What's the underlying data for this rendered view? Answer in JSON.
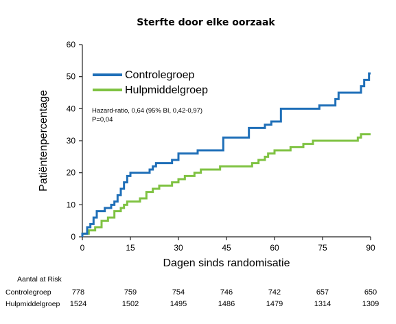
{
  "chart_data": {
    "type": "line",
    "step": true,
    "title": "Sterfte door elke oorzaak",
    "xlabel": "Dagen sinds randomisatie",
    "ylabel": "Patiëntenpercentage",
    "xlim": [
      0,
      90
    ],
    "ylim": [
      0,
      60
    ],
    "xticks": [
      0,
      15,
      30,
      45,
      60,
      75,
      90
    ],
    "yticks": [
      0,
      10,
      20,
      30,
      40,
      50,
      60
    ],
    "grid": false,
    "legend_position": "top-left",
    "annotation": {
      "line1": "Hazard-ratio, 0,64 (95% BI, 0,42-0,97)",
      "line2": "P=0,04"
    },
    "series": [
      {
        "name": "Controlegroep",
        "color": "#1f6fb8",
        "points": [
          [
            0,
            0
          ],
          [
            0,
            1
          ],
          [
            1.5,
            1
          ],
          [
            1.5,
            3
          ],
          [
            2.5,
            3
          ],
          [
            2.5,
            4
          ],
          [
            3.5,
            4
          ],
          [
            3.5,
            6
          ],
          [
            4.5,
            6
          ],
          [
            4.5,
            8
          ],
          [
            7,
            8
          ],
          [
            7,
            9
          ],
          [
            9,
            9
          ],
          [
            9,
            10
          ],
          [
            10,
            10
          ],
          [
            10,
            11
          ],
          [
            11,
            11
          ],
          [
            11,
            13
          ],
          [
            12,
            13
          ],
          [
            12,
            15
          ],
          [
            13,
            15
          ],
          [
            13,
            17
          ],
          [
            14,
            17
          ],
          [
            14,
            19
          ],
          [
            15,
            19
          ],
          [
            15,
            20
          ],
          [
            21,
            20
          ],
          [
            21,
            21
          ],
          [
            22,
            21
          ],
          [
            22,
            22
          ],
          [
            23,
            22
          ],
          [
            23,
            23
          ],
          [
            28,
            23
          ],
          [
            28,
            24
          ],
          [
            30,
            24
          ],
          [
            30,
            26
          ],
          [
            36,
            26
          ],
          [
            36,
            27
          ],
          [
            44,
            27
          ],
          [
            44,
            31
          ],
          [
            52,
            31
          ],
          [
            52,
            34
          ],
          [
            57,
            34
          ],
          [
            57,
            35
          ],
          [
            59,
            35
          ],
          [
            59,
            36
          ],
          [
            62,
            36
          ],
          [
            62,
            40
          ],
          [
            74,
            40
          ],
          [
            74,
            41
          ],
          [
            79,
            41
          ],
          [
            79,
            43
          ],
          [
            80,
            43
          ],
          [
            80,
            45
          ],
          [
            87,
            45
          ],
          [
            87,
            47
          ],
          [
            88,
            47
          ],
          [
            88,
            49
          ],
          [
            89.5,
            49
          ],
          [
            89.5,
            51
          ],
          [
            90,
            51
          ]
        ]
      },
      {
        "name": "Hulpmiddelgroep",
        "color": "#7fc242",
        "points": [
          [
            0,
            0
          ],
          [
            0,
            1
          ],
          [
            2,
            1
          ],
          [
            2,
            2
          ],
          [
            4,
            2
          ],
          [
            4,
            3
          ],
          [
            6,
            3
          ],
          [
            6,
            5
          ],
          [
            8,
            5
          ],
          [
            8,
            6
          ],
          [
            10,
            6
          ],
          [
            10,
            8
          ],
          [
            12,
            8
          ],
          [
            12,
            9
          ],
          [
            13,
            9
          ],
          [
            13,
            10
          ],
          [
            14,
            10
          ],
          [
            14,
            11
          ],
          [
            18,
            11
          ],
          [
            18,
            12
          ],
          [
            20,
            12
          ],
          [
            20,
            14
          ],
          [
            22,
            14
          ],
          [
            22,
            15
          ],
          [
            24,
            15
          ],
          [
            24,
            16
          ],
          [
            28,
            16
          ],
          [
            28,
            17
          ],
          [
            30,
            17
          ],
          [
            30,
            18
          ],
          [
            32,
            18
          ],
          [
            32,
            19
          ],
          [
            35,
            19
          ],
          [
            35,
            20
          ],
          [
            37,
            20
          ],
          [
            37,
            21
          ],
          [
            43,
            21
          ],
          [
            43,
            22
          ],
          [
            53,
            22
          ],
          [
            53,
            23
          ],
          [
            55,
            23
          ],
          [
            55,
            24
          ],
          [
            57,
            24
          ],
          [
            57,
            25
          ],
          [
            58,
            25
          ],
          [
            58,
            26
          ],
          [
            60,
            26
          ],
          [
            60,
            27
          ],
          [
            65,
            27
          ],
          [
            65,
            28
          ],
          [
            69,
            28
          ],
          [
            69,
            29
          ],
          [
            72,
            29
          ],
          [
            72,
            30
          ],
          [
            86,
            30
          ],
          [
            86,
            31
          ],
          [
            87,
            31
          ],
          [
            87,
            32
          ],
          [
            90,
            32
          ]
        ]
      }
    ],
    "at_risk": {
      "title": "Aantal at Risk",
      "days": [
        0,
        15,
        30,
        45,
        60,
        75,
        90
      ],
      "rows": [
        {
          "label": "Controlegroep",
          "values": [
            "778",
            "759",
            "754",
            "746",
            "742",
            "657",
            "650"
          ]
        },
        {
          "label": "Hulpmiddelgroep",
          "values": [
            "1524",
            "1502",
            "1495",
            "1486",
            "1479",
            "1314",
            "1309"
          ]
        }
      ]
    }
  }
}
